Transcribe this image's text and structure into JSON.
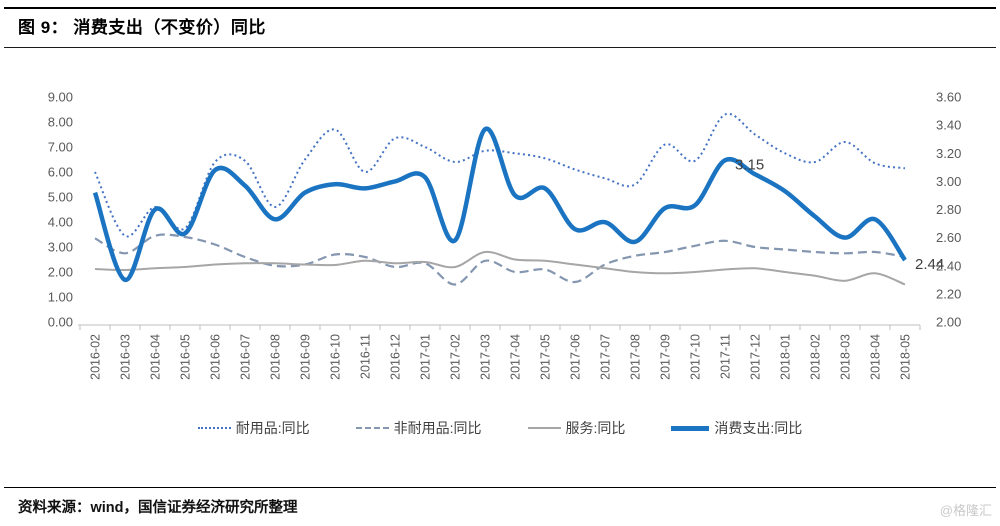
{
  "header": {
    "title": "图 9： 消费支出（不变价）同比"
  },
  "footer": {
    "source": "资料来源：wind，国信证券经济研究所整理",
    "watermark": "@格隆汇"
  },
  "chart_data": {
    "type": "line",
    "title": "消费支出（不变价）同比",
    "grid": false,
    "legend_position": "bottom",
    "categories": [
      "2016-02",
      "2016-03",
      "2016-04",
      "2016-05",
      "2016-06",
      "2016-07",
      "2016-08",
      "2016-09",
      "2016-10",
      "2016-11",
      "2016-12",
      "2017-01",
      "2017-02",
      "2017-03",
      "2017-04",
      "2017-05",
      "2017-06",
      "2017-07",
      "2017-08",
      "2017-09",
      "2017-10",
      "2017-11",
      "2017-12",
      "2018-01",
      "2018-02",
      "2018-03",
      "2018-04",
      "2018-05"
    ],
    "left_axis": {
      "min": 0,
      "max": 9,
      "step": 1,
      "tick_labels": [
        "9.00",
        "8.00",
        "7.00",
        "6.00",
        "5.00",
        "4.00",
        "3.00",
        "2.00",
        "1.00",
        "0.00"
      ]
    },
    "right_axis": {
      "min": 2,
      "max": 3.6,
      "step": 0.2,
      "tick_labels": [
        "3.60",
        "3.40",
        "3.20",
        "3.00",
        "2.80",
        "2.60",
        "2.40",
        "2.20",
        "2.00"
      ]
    },
    "series": [
      {
        "name": "耐用品:同比",
        "axis": "left",
        "style": "dotted",
        "color": "#4472c4",
        "width": 2,
        "values": [
          6.0,
          3.45,
          4.6,
          3.75,
          6.4,
          6.45,
          4.6,
          6.5,
          7.7,
          6.0,
          7.35,
          7.0,
          6.4,
          6.85,
          6.75,
          6.55,
          6.1,
          5.75,
          5.5,
          7.1,
          6.45,
          8.3,
          7.5,
          6.75,
          6.4,
          7.2,
          6.35,
          6.15
        ]
      },
      {
        "name": "非耐用品:同比",
        "axis": "left",
        "style": "dashed",
        "color": "#8496b0",
        "width": 2.2,
        "values": [
          3.35,
          2.75,
          3.45,
          3.4,
          3.1,
          2.6,
          2.25,
          2.3,
          2.7,
          2.6,
          2.2,
          2.35,
          1.5,
          2.45,
          2.0,
          2.1,
          1.6,
          2.3,
          2.65,
          2.8,
          3.05,
          3.25,
          3.0,
          2.9,
          2.8,
          2.75,
          2.8,
          2.6
        ]
      },
      {
        "name": "服务:同比",
        "axis": "left",
        "style": "solid",
        "color": "#a6a6a6",
        "width": 2,
        "values": [
          2.12,
          2.08,
          2.15,
          2.2,
          2.3,
          2.35,
          2.35,
          2.3,
          2.28,
          2.45,
          2.35,
          2.4,
          2.2,
          2.8,
          2.5,
          2.45,
          2.3,
          2.15,
          2.0,
          1.95,
          2.0,
          2.1,
          2.15,
          2.0,
          1.85,
          1.65,
          1.95,
          1.5
        ]
      },
      {
        "name": "消费支出:同比",
        "axis": "right",
        "style": "thick",
        "color": "#1b74c2",
        "width": 4.5,
        "values": [
          2.92,
          2.3,
          2.8,
          2.63,
          3.08,
          2.97,
          2.73,
          2.92,
          2.98,
          2.95,
          3.0,
          3.03,
          2.58,
          3.37,
          2.9,
          2.95,
          2.66,
          2.71,
          2.57,
          2.81,
          2.83,
          3.15,
          3.05,
          2.93,
          2.75,
          2.6,
          2.73,
          2.44
        ]
      }
    ],
    "annotations": [
      {
        "series": "消费支出:同比",
        "category": "2017-11",
        "text": "3.15"
      },
      {
        "series": "消费支出:同比",
        "category": "2018-05",
        "text": "2.44"
      }
    ]
  }
}
